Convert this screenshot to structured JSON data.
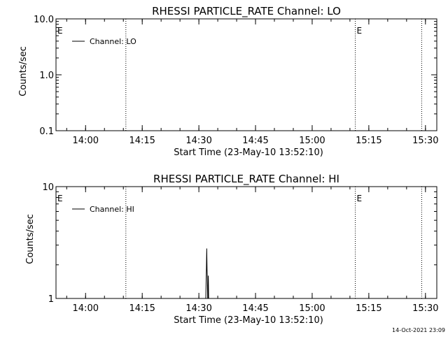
{
  "footer": {
    "timestamp": "14-Oct-2021 23:09"
  },
  "chart_data": [
    {
      "type": "line",
      "title": "RHESSI PARTICLE_RATE Channel: LO",
      "xlabel": "Start Time (23-May-10 13:52:10)",
      "ylabel": "Counts/sec",
      "y_scale": "log",
      "ylim": [
        0.1,
        10.0
      ],
      "y_ticks": [
        0.1,
        1.0,
        10.0
      ],
      "y_tick_labels": [
        "0.1",
        "1.0",
        "10.0"
      ],
      "xlim": [
        "13:52:10",
        "15:33:00"
      ],
      "x_ticks": [
        "14:00",
        "14:15",
        "14:30",
        "14:45",
        "15:00",
        "15:15",
        "15:30"
      ],
      "x_tick_labels": [
        "14:00",
        "14:15",
        "14:30",
        "14:45",
        "15:00",
        "15:15",
        "15:30"
      ],
      "vertical_lines": [
        "14:10:40",
        "15:11:25",
        "15:29:00"
      ],
      "markers": [
        {
          "label": "E",
          "x": "13:52:10"
        },
        {
          "label": "E",
          "x": "15:11:25"
        }
      ],
      "legend": {
        "position": "top-left",
        "entries": [
          "Channel: LO"
        ]
      },
      "series": [
        {
          "name": "Channel: LO",
          "x": [],
          "y": []
        }
      ]
    },
    {
      "type": "line",
      "title": "RHESSI PARTICLE_RATE Channel: HI",
      "xlabel": "Start Time (23-May-10 13:52:10)",
      "ylabel": "Counts/sec",
      "y_scale": "log",
      "ylim": [
        1,
        10
      ],
      "y_ticks": [
        1,
        10
      ],
      "y_tick_labels": [
        "1",
        "10"
      ],
      "xlim": [
        "13:52:10",
        "15:33:00"
      ],
      "x_ticks": [
        "14:00",
        "14:15",
        "14:30",
        "14:45",
        "15:00",
        "15:15",
        "15:30"
      ],
      "x_tick_labels": [
        "14:00",
        "14:15",
        "14:30",
        "14:45",
        "15:00",
        "15:15",
        "15:30"
      ],
      "vertical_lines": [
        "14:10:40",
        "15:11:25",
        "15:29:00"
      ],
      "markers": [
        {
          "label": "E",
          "x": "13:52:10"
        },
        {
          "label": "E",
          "x": "15:11:25"
        }
      ],
      "legend": {
        "position": "top-left",
        "entries": [
          "Channel: HI"
        ]
      },
      "series": [
        {
          "name": "Channel: HI",
          "x": [
            "14:31:45",
            "14:31:50",
            "14:31:55",
            "14:32:00",
            "14:32:05",
            "14:32:10",
            "14:32:15",
            "14:32:20",
            "14:32:25",
            "14:32:30",
            "14:32:35"
          ],
          "y": [
            1,
            1,
            1.4,
            1.9,
            2.8,
            1.8,
            1.5,
            1,
            1,
            1.6,
            1
          ]
        }
      ]
    }
  ]
}
